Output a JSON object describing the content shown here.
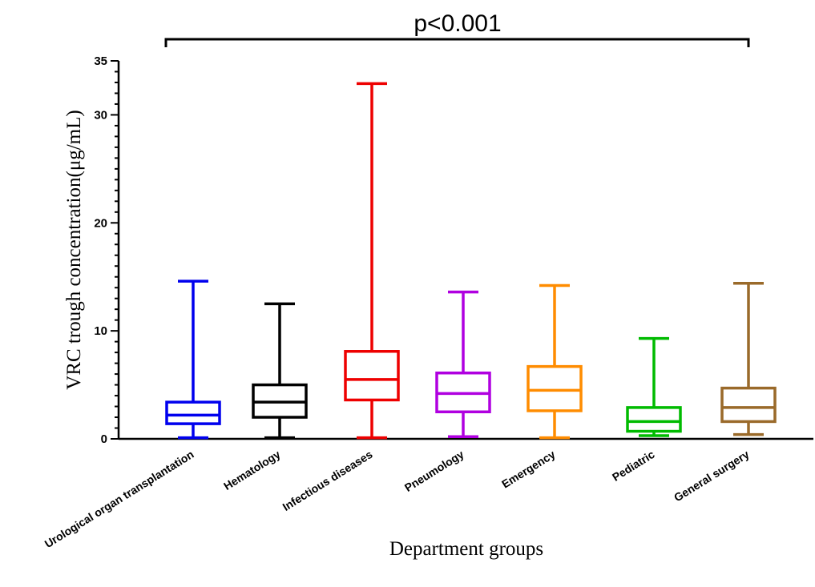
{
  "chart_data": {
    "type": "boxplot",
    "title": "",
    "xlabel": "Department groups",
    "ylabel": "VRC trough concentration(μg/mL)",
    "ylim": [
      0,
      35
    ],
    "yticks": [
      0,
      10,
      20,
      30,
      35
    ],
    "grid": false,
    "legend": "none",
    "significance": {
      "label": "p<0.001",
      "from": "Urological organ transplantation",
      "to": "General surgery"
    },
    "categories": [
      "Urological organ transplantation",
      "Hematology",
      "Infectious diseases",
      "Pneumology",
      "Emergency",
      "Pediatric",
      "General surgery"
    ],
    "boxes": [
      {
        "min": 0.1,
        "q1": 1.4,
        "median": 2.2,
        "q3": 3.4,
        "max": 14.6,
        "color": "#0000ee"
      },
      {
        "min": 0.1,
        "q1": 2.0,
        "median": 3.4,
        "q3": 5.0,
        "max": 12.5,
        "color": "#000000"
      },
      {
        "min": 0.1,
        "q1": 3.6,
        "median": 5.5,
        "q3": 8.1,
        "max": 32.9,
        "color": "#ee0000"
      },
      {
        "min": 0.2,
        "q1": 2.5,
        "median": 4.2,
        "q3": 6.1,
        "max": 13.6,
        "color": "#b000e0"
      },
      {
        "min": 0.1,
        "q1": 2.6,
        "median": 4.5,
        "q3": 6.7,
        "max": 14.2,
        "color": "#ff8c00"
      },
      {
        "min": 0.3,
        "q1": 0.7,
        "median": 1.6,
        "q3": 2.9,
        "max": 9.3,
        "color": "#00bb00"
      },
      {
        "min": 0.4,
        "q1": 1.6,
        "median": 2.9,
        "q3": 4.7,
        "max": 14.4,
        "color": "#9a6a2a"
      }
    ]
  }
}
